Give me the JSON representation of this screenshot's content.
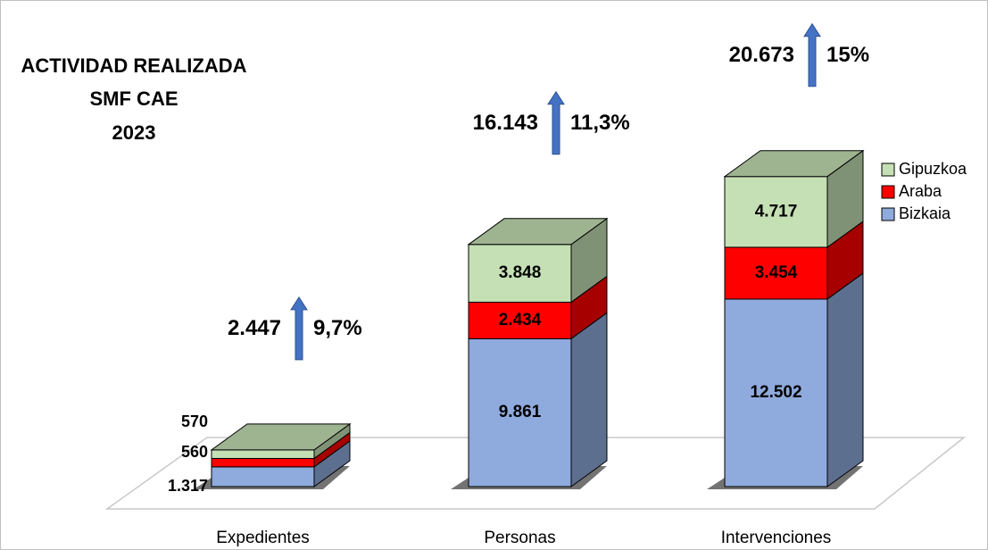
{
  "chart_data": {
    "type": "bar3d_stacked",
    "title": [
      "ACTIVIDAD REALIZADA",
      "SMF CAE",
      "2023"
    ],
    "categories": [
      "Expedientes",
      "Personas",
      "Intervenciones"
    ],
    "series": [
      {
        "name": "Bizkaia",
        "color": "#8faadc",
        "values": [
          1317,
          9861,
          12502
        ],
        "value_labels": [
          "1.317",
          "9.861",
          "12.502"
        ]
      },
      {
        "name": "Araba",
        "color": "#ff0000",
        "values": [
          560,
          2434,
          3454
        ],
        "value_labels": [
          "560",
          "2.434",
          "3.454"
        ]
      },
      {
        "name": "Gipuzkoa",
        "color": "#c5e0b4",
        "values": [
          570,
          3848,
          4717
        ],
        "value_labels": [
          "570",
          "3.848",
          "4.717"
        ]
      }
    ],
    "annotations": [
      {
        "total": "2.447",
        "change": "9,7%"
      },
      {
        "total": "16.143",
        "change": "11,3%"
      },
      {
        "total": "20.673",
        "change": "15%"
      }
    ],
    "legend": "right"
  }
}
